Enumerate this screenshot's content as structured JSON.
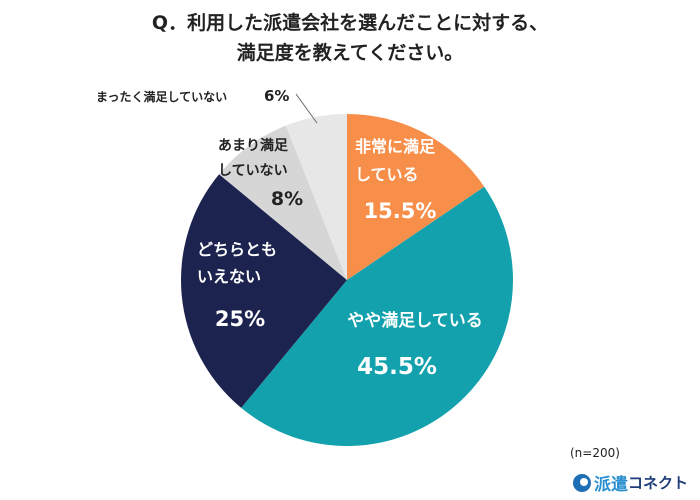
{
  "chart_data": {
    "type": "pie",
    "title": [
      "Q．利用した派遣会社を選んだことに対する、",
      "満足度を教えてください。"
    ],
    "note": "(n=200)",
    "slices": [
      {
        "label": [
          "非常に満足",
          "している"
        ],
        "value": 15.5,
        "display": "15.5%",
        "color": "#F78F4B",
        "text_color": "#FFFFFF"
      },
      {
        "label": [
          "やや満足している"
        ],
        "value": 45.5,
        "display": "45.5%",
        "color": "#13A2AD",
        "text_color": "#FFFFFF"
      },
      {
        "label": [
          "どちらとも",
          "いえない"
        ],
        "value": 25,
        "display": "25%",
        "color": "#1C234E",
        "text_color": "#FFFFFF"
      },
      {
        "label": [
          "あまり満足",
          "していない"
        ],
        "value": 8,
        "display": "8%",
        "color": "#D6D6D6",
        "text_color": "#222222"
      },
      {
        "label": [
          "まったく満足していない"
        ],
        "value": 6,
        "display": "6%",
        "color": "#E7E7E7",
        "text_color": "#222222"
      }
    ],
    "start": "12 o'clock",
    "direction": "clockwise"
  },
  "logo": {
    "part1": "派遣",
    "part2": "コネクト"
  }
}
